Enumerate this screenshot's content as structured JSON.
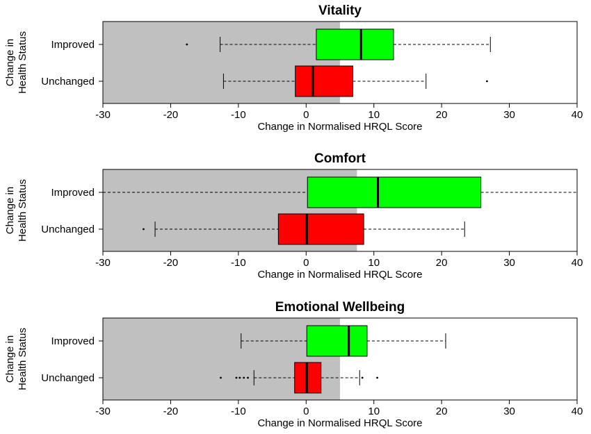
{
  "chart_data": [
    {
      "type": "boxplot",
      "title": "Vitality",
      "xlabel": "Change in Normalised HRQL Score",
      "ylabel": "Change in Health Status",
      "xlim": [
        -30,
        40
      ],
      "xticks": [
        -30,
        -20,
        -10,
        0,
        10,
        20,
        30,
        40
      ],
      "threshold_shading": {
        "from": -30,
        "to": 5,
        "color": "#c0c0c0"
      },
      "groups": [
        {
          "label": "Improved",
          "color": "#00ff00",
          "whisker_low": -12.7,
          "q1": 1.5,
          "median": 8.1,
          "q3": 12.9,
          "whisker_high": 27.2,
          "outliers": [
            -17.6
          ]
        },
        {
          "label": "Unchanged",
          "color": "#ff0000",
          "whisker_low": -12.2,
          "q1": -1.6,
          "median": 1.0,
          "q3": 6.9,
          "whisker_high": 17.7,
          "outliers": [
            26.7
          ]
        }
      ]
    },
    {
      "type": "boxplot",
      "title": "Comfort",
      "xlabel": "Change in Normalised HRQL Score",
      "ylabel": "Change in Health Status",
      "xlim": [
        -30,
        40
      ],
      "xticks": [
        -30,
        -20,
        -10,
        0,
        10,
        20,
        30,
        40
      ],
      "threshold_shading": {
        "from": -30,
        "to": 7.5,
        "color": "#c0c0c0"
      },
      "groups": [
        {
          "label": "Improved",
          "color": "#00ff00",
          "whisker_low": -30,
          "q1": 0.2,
          "median": 10.6,
          "q3": 25.8,
          "whisker_high": 40,
          "outliers": []
        },
        {
          "label": "Unchanged",
          "color": "#ff0000",
          "whisker_low": -22.3,
          "q1": -4.1,
          "median": 0.1,
          "q3": 8.5,
          "whisker_high": 23.4,
          "outliers": [
            -24.0
          ]
        }
      ]
    },
    {
      "type": "boxplot",
      "title": "Emotional Wellbeing",
      "xlabel": "Change in Normalised HRQL Score",
      "ylabel": "Change in Health Status",
      "xlim": [
        -30,
        40
      ],
      "xticks": [
        -30,
        -20,
        -10,
        0,
        10,
        20,
        30,
        40
      ],
      "threshold_shading": {
        "from": -30,
        "to": 5,
        "color": "#c0c0c0"
      },
      "groups": [
        {
          "label": "Improved",
          "color": "#00ff00",
          "whisker_low": -9.6,
          "q1": 0.1,
          "median": 6.3,
          "q3": 9.0,
          "whisker_high": 20.6,
          "outliers": []
        },
        {
          "label": "Unchanged",
          "color": "#ff0000",
          "whisker_low": -7.7,
          "q1": -1.7,
          "median": 0.1,
          "q3": 2.2,
          "whisker_high": 7.9,
          "outliers": [
            -12.6,
            -10.3,
            -9.8,
            -9.2,
            -8.6,
            8.3,
            10.5
          ]
        }
      ]
    }
  ]
}
